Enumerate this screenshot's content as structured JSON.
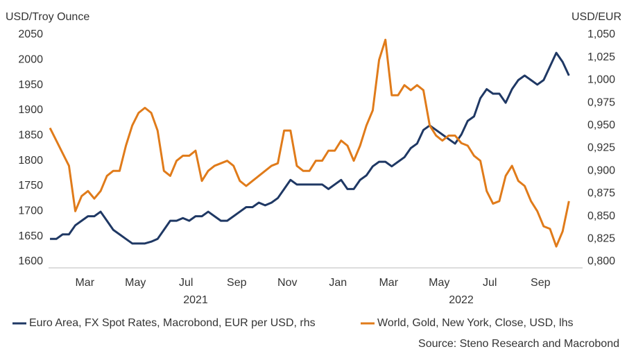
{
  "chart_data": {
    "type": "line",
    "y_label": "USD/Troy Ounce",
    "y2_label": "USD/EUR",
    "source": "Source: Steno Research and Macrobond",
    "years": [
      "2021",
      "2022"
    ],
    "categories": [
      null,
      null,
      null,
      null,
      null,
      "Mar",
      null,
      null,
      null,
      null,
      null,
      null,
      null,
      "May",
      null,
      null,
      null,
      null,
      null,
      null,
      null,
      "Jul",
      null,
      null,
      null,
      null,
      null,
      null,
      null,
      "Sep",
      null,
      null,
      null,
      null,
      null,
      null,
      null,
      "Nov",
      null,
      null,
      null,
      null,
      null,
      null,
      null,
      "Jan",
      null,
      null,
      null,
      null,
      null,
      null,
      null,
      "Mar",
      null,
      null,
      null,
      null,
      null,
      null,
      null,
      "May",
      null,
      null,
      null,
      null,
      null,
      null,
      null,
      "Jul",
      null,
      null,
      null,
      null,
      null,
      null,
      null,
      "Sep",
      null,
      null,
      null,
      null,
      null
    ],
    "series": [
      {
        "name": "Euro Area, FX Spot Rates, Macrobond, EUR per USD, rhs",
        "color": "#1f3864",
        "axis": "y2",
        "values": [
          0.825,
          0.825,
          0.83,
          0.83,
          0.84,
          0.845,
          0.85,
          0.85,
          0.855,
          0.845,
          0.835,
          0.83,
          0.825,
          0.82,
          0.82,
          0.82,
          0.822,
          0.825,
          0.835,
          0.845,
          0.845,
          0.848,
          0.845,
          0.85,
          0.85,
          0.855,
          0.85,
          0.845,
          0.845,
          0.85,
          0.855,
          0.86,
          0.86,
          0.865,
          0.862,
          0.865,
          0.87,
          0.88,
          0.89,
          0.885,
          0.885,
          0.885,
          0.885,
          0.885,
          0.88,
          0.885,
          0.89,
          0.88,
          0.88,
          0.89,
          0.895,
          0.905,
          0.91,
          0.91,
          0.905,
          0.91,
          0.915,
          0.925,
          0.93,
          0.945,
          0.95,
          0.945,
          0.94,
          0.935,
          0.93,
          0.94,
          0.955,
          0.96,
          0.98,
          0.99,
          0.985,
          0.985,
          0.975,
          0.99,
          1.0,
          1.005,
          1.0,
          0.995,
          1.0,
          1.015,
          1.03,
          1.02,
          1.005
        ]
      },
      {
        "name": "World, Gold, New York, Close, USD, lhs",
        "color": "#e07b1a",
        "values": [
          1865,
          1840,
          1815,
          1790,
          1700,
          1730,
          1740,
          1725,
          1740,
          1770,
          1780,
          1780,
          1830,
          1870,
          1895,
          1905,
          1895,
          1860,
          1780,
          1770,
          1800,
          1810,
          1810,
          1820,
          1760,
          1780,
          1790,
          1795,
          1800,
          1790,
          1760,
          1750,
          1760,
          1770,
          1780,
          1790,
          1795,
          1860,
          1860,
          1790,
          1780,
          1780,
          1800,
          1800,
          1820,
          1820,
          1840,
          1830,
          1800,
          1830,
          1870,
          1900,
          2000,
          2040,
          1930,
          1930,
          1950,
          1940,
          1950,
          1940,
          1870,
          1850,
          1840,
          1850,
          1850,
          1835,
          1830,
          1810,
          1800,
          1740,
          1715,
          1720,
          1770,
          1790,
          1760,
          1750,
          1720,
          1700,
          1670,
          1665,
          1630,
          1660,
          1720
        ]
      }
    ],
    "ylim": [
      1600,
      2050
    ],
    "yticks": [
      1600,
      1650,
      1700,
      1750,
      1800,
      1850,
      1900,
      1950,
      2000,
      2050
    ],
    "y2lim": [
      0.8,
      1.05
    ],
    "y2ticks": [
      {
        "value": 0.8,
        "label": "0,800"
      },
      {
        "value": 0.825,
        "label": "0,825"
      },
      {
        "value": 0.85,
        "label": "0,850"
      },
      {
        "value": 0.875,
        "label": "0,875"
      },
      {
        "value": 0.9,
        "label": "0,900"
      },
      {
        "value": 0.925,
        "label": "0,925"
      },
      {
        "value": 0.95,
        "label": "0,950"
      },
      {
        "value": 0.975,
        "label": "0,975"
      },
      {
        "value": 1.0,
        "label": "1,000"
      },
      {
        "value": 1.025,
        "label": "1,025"
      },
      {
        "value": 1.05,
        "label": "1,050"
      }
    ],
    "legend": "bottom"
  }
}
